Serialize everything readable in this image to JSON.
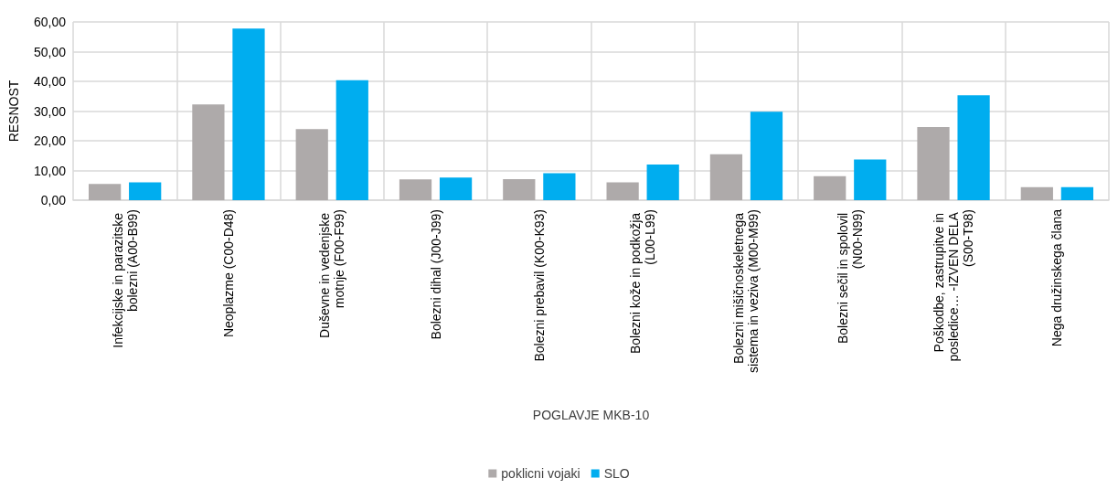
{
  "chart_data": {
    "type": "bar",
    "xlabel": "POGLAVJE MKB-10",
    "ylabel": "RESNOST",
    "categories": [
      "Infekcijske in parazitske bolezni (A00-B99)",
      "Neoplazme (C00-D48)",
      "Duševne in vedenjske motnje (F00-F99)",
      "Bolezni dihal (J00-J99)",
      "Bolezni prebavil (K00-K93)",
      "Bolezni kože in podkožja (L00-L99)",
      "Bolezni mišičnoskeletnega sistema in veziva (M00-M99)",
      "Bolezni sečil in spolovil (N00-N99)",
      "Poškodbe, zastrupitve in posledice… -IZVEN DELA (S00-T98)",
      "Nega družinskega člana"
    ],
    "series": [
      {
        "name": "poklicni vojaki",
        "color": "#aeaaaa",
        "values": [
          5.5,
          32.2,
          23.9,
          7.0,
          7.1,
          6.0,
          15.5,
          8.1,
          24.6,
          4.4
        ]
      },
      {
        "name": "SLO",
        "color": "#00adef",
        "values": [
          6.0,
          57.8,
          40.4,
          7.6,
          9.1,
          12.0,
          29.8,
          13.7,
          35.3,
          4.4
        ]
      }
    ],
    "ylim": [
      0,
      60
    ],
    "yticks": [
      {
        "value": 0,
        "label": "0,00"
      },
      {
        "value": 10,
        "label": "10,00"
      },
      {
        "value": 20,
        "label": "20,00"
      },
      {
        "value": 30,
        "label": "30,00"
      },
      {
        "value": 40,
        "label": "40,00"
      },
      {
        "value": 50,
        "label": "50,00"
      },
      {
        "value": 60,
        "label": "60,00"
      }
    ],
    "grid": true,
    "legend": "bottom"
  }
}
